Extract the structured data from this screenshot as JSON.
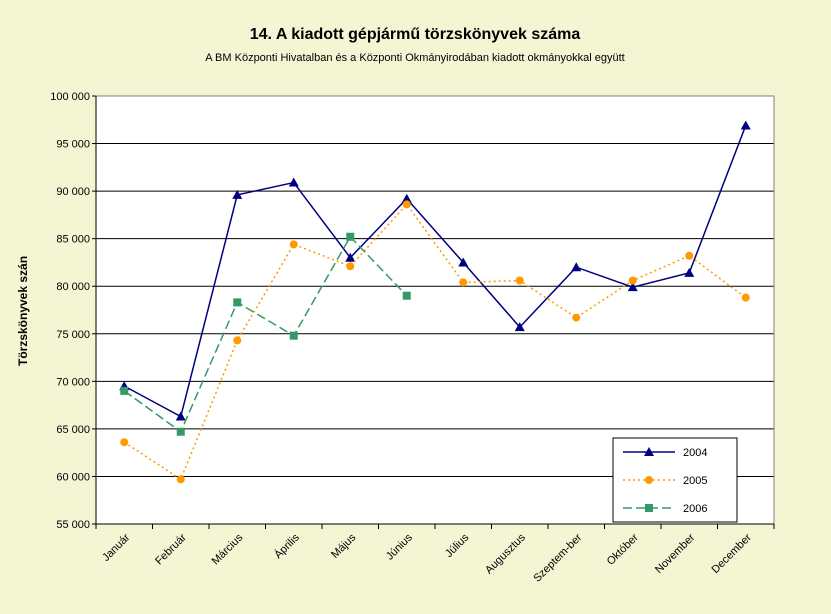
{
  "chart_data": {
    "type": "line",
    "title": "14. A  kiadott gépjármű  törzskönyvek száma",
    "subtitle": "A BM Központi Hivatalban és a Központi Okmányirodában kiadott okmányokkal együtt",
    "xlabel": "",
    "ylabel": "Törzskönyvek szán",
    "ylim": [
      55000,
      100000
    ],
    "ytick_values": [
      55000,
      60000,
      65000,
      70000,
      75000,
      80000,
      85000,
      90000,
      95000,
      100000
    ],
    "ytick_labels": [
      "55 000",
      "60 000",
      "65 000",
      "70 000",
      "75 000",
      "80 000",
      "85 000",
      "90 000",
      "95 000",
      "100 000"
    ],
    "categories": [
      "Január",
      "Február",
      "Március",
      "Április",
      "Május",
      "Június",
      "Július",
      "Augusztus",
      "Szeptem-ber",
      "Október",
      "November",
      "December"
    ],
    "grid": "horizontal",
    "legend_position": "bottom-right",
    "plot_background": "#ffffff",
    "page_background": "#f3f5d3",
    "series": [
      {
        "name": "2004",
        "color": "#000080",
        "marker": "triangle",
        "dash": "solid",
        "values": [
          69500,
          66300,
          89600,
          90900,
          83000,
          89200,
          82500,
          75700,
          82000,
          79900,
          81400,
          96900
        ]
      },
      {
        "name": "2005",
        "color": "#ff9900",
        "marker": "circle",
        "dash": "dotted",
        "values": [
          63600,
          59700,
          74300,
          84400,
          82100,
          88600,
          80400,
          80600,
          76700,
          80600,
          83200,
          78800
        ]
      },
      {
        "name": "2006",
        "color": "#339966",
        "marker": "square",
        "dash": "dashed",
        "values": [
          69000,
          64700,
          78300,
          74800,
          85200,
          79000,
          null,
          null,
          null,
          null,
          null,
          null
        ]
      }
    ]
  }
}
